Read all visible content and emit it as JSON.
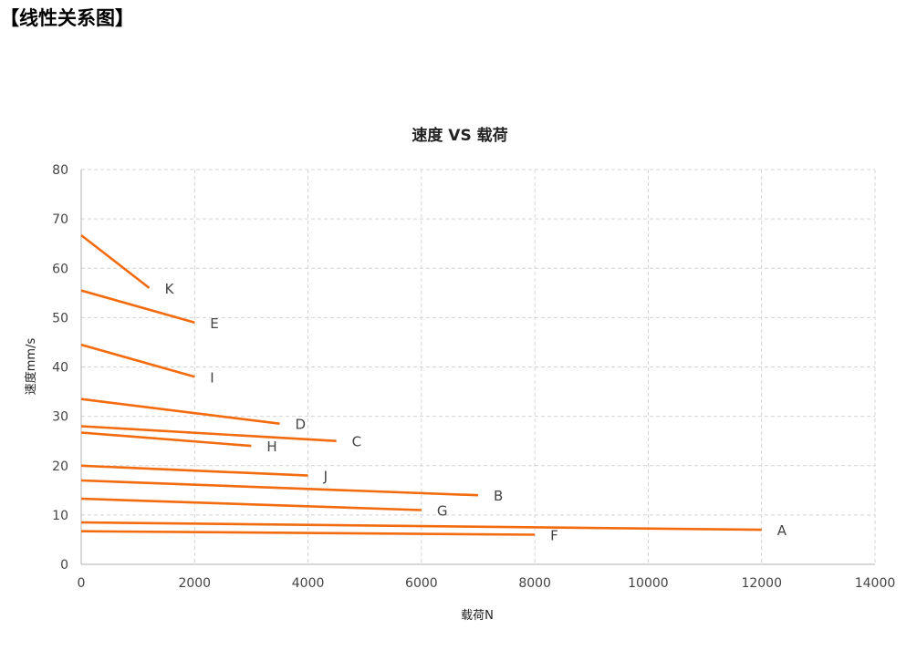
{
  "page": {
    "heading": "【线性关系图】"
  },
  "colors": {
    "series": "#f26b0f",
    "grid": "#d4d4d4",
    "axis": "#bfbfbf"
  },
  "chart_data": {
    "type": "line",
    "title": "速度 VS 载荷",
    "xlabel": "载荷N",
    "ylabel": "速度mm/s",
    "xlim": [
      0,
      14000
    ],
    "ylim": [
      0,
      80
    ],
    "x_ticks": [
      0,
      2000,
      4000,
      6000,
      8000,
      10000,
      12000,
      14000
    ],
    "y_ticks": [
      0,
      10,
      20,
      30,
      40,
      50,
      60,
      70,
      80
    ],
    "grid": true,
    "grid_style": "dashed",
    "legend": "none",
    "series": [
      {
        "name": "K",
        "x": [
          0,
          1200
        ],
        "y": [
          66.7,
          56
        ]
      },
      {
        "name": "E",
        "x": [
          0,
          2000
        ],
        "y": [
          55.5,
          49
        ]
      },
      {
        "name": "I",
        "x": [
          0,
          2000
        ],
        "y": [
          44.5,
          38
        ]
      },
      {
        "name": "D",
        "x": [
          0,
          3500
        ],
        "y": [
          33.5,
          28.5
        ]
      },
      {
        "name": "C",
        "x": [
          0,
          4500
        ],
        "y": [
          28,
          25
        ]
      },
      {
        "name": "H",
        "x": [
          0,
          3000
        ],
        "y": [
          26.7,
          24
        ]
      },
      {
        "name": "J",
        "x": [
          0,
          4000
        ],
        "y": [
          20,
          18
        ]
      },
      {
        "name": "B",
        "x": [
          0,
          7000
        ],
        "y": [
          17,
          14
        ]
      },
      {
        "name": "G",
        "x": [
          0,
          6000
        ],
        "y": [
          13.3,
          11
        ]
      },
      {
        "name": "A",
        "x": [
          0,
          12000
        ],
        "y": [
          8.5,
          7
        ]
      },
      {
        "name": "F",
        "x": [
          0,
          8000
        ],
        "y": [
          6.7,
          6
        ]
      }
    ]
  }
}
